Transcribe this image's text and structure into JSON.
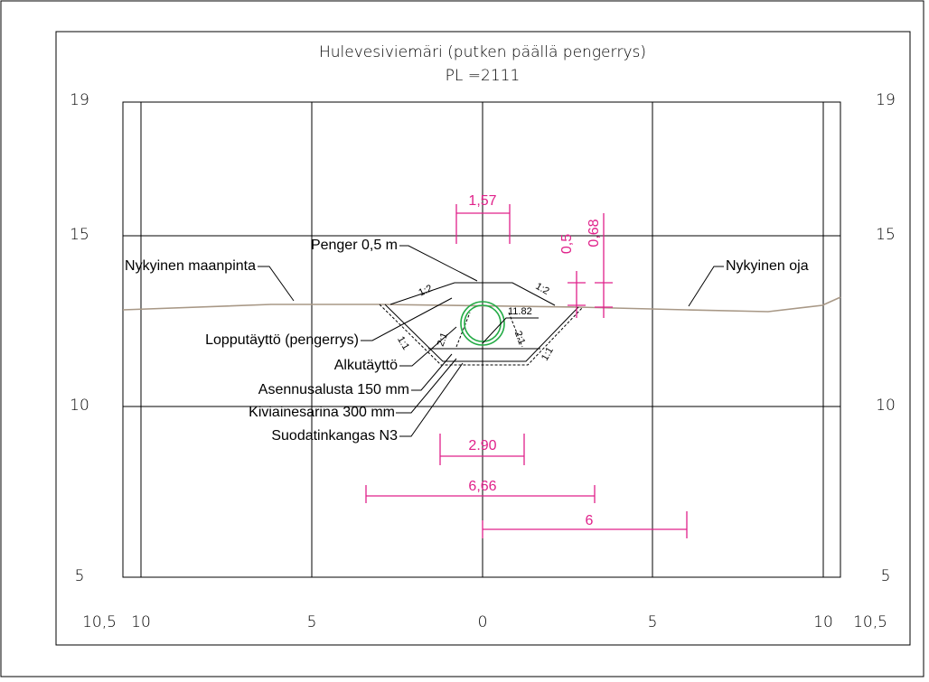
{
  "title": "Hulevesiviemäri (putken päällä pengerrys)",
  "subtitle": "PL =2111",
  "y_labels": [
    "19",
    "15",
    "10",
    "5"
  ],
  "x_labels": [
    "10,5",
    "10",
    "5",
    "0",
    "5",
    "10",
    "10,5"
  ],
  "annotations": [
    "Penger 0,5 m",
    "Nykyinen maanpinta",
    "Nykyinen oja",
    "Lopputäyttö (pengerrys)",
    "Alkutäyttö",
    "Asennusalusta 150 mm",
    "Kiviainesarina 300 mm",
    "Suodatinkangas N3"
  ],
  "slopes": [
    "1:2",
    "1:2",
    "1:1",
    "2:1",
    "2:1",
    "1:1"
  ],
  "pipe_level": "11.82",
  "dimensions": [
    "1,57",
    "0,5",
    "0,68",
    "2.90",
    "6,66",
    "6"
  ]
}
